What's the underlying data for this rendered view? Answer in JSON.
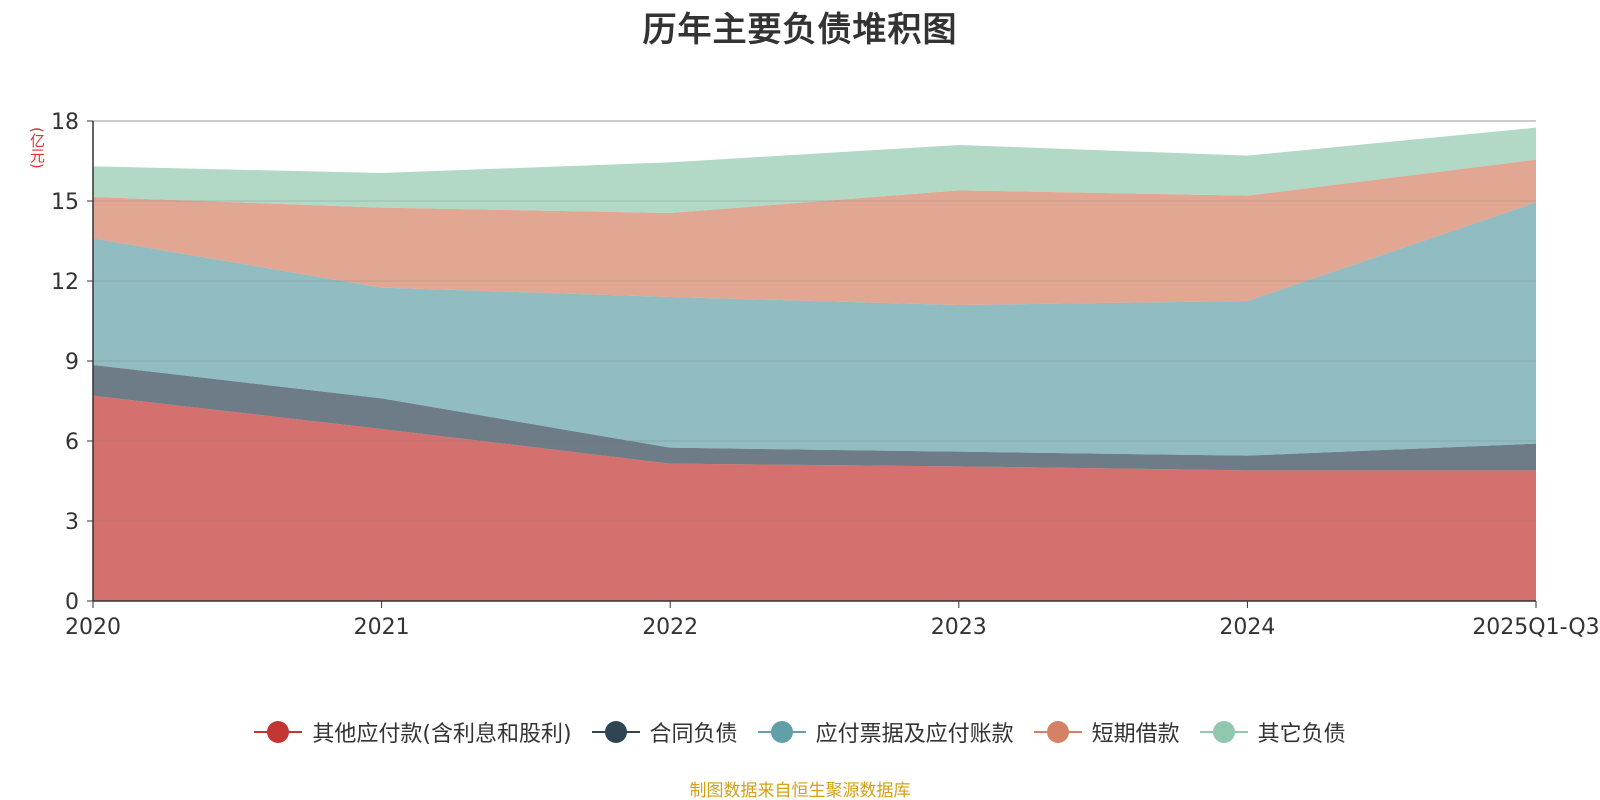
{
  "chart_data": {
    "type": "area",
    "title": "历年主要负债堆积图",
    "unit_label": "(亿元)",
    "source_note": "制图数据来自恒生聚源数据库",
    "categories": [
      "2020",
      "2021",
      "2022",
      "2023",
      "2024",
      "2025Q1-Q3"
    ],
    "ylim": [
      0,
      18
    ],
    "yticks": [
      0,
      3,
      6,
      9,
      12,
      15,
      18
    ],
    "stacked": true,
    "grid": true,
    "legend_position": "bottom",
    "series": [
      {
        "name": "其他应付款(含利息和股利)",
        "color": "#c23531",
        "values": [
          7.7,
          6.45,
          5.15,
          5.05,
          4.9,
          4.9
        ]
      },
      {
        "name": "合同负债",
        "color": "#2f4554",
        "values": [
          1.15,
          1.15,
          0.6,
          0.55,
          0.55,
          1.0
        ]
      },
      {
        "name": "应付票据及应付账款",
        "color": "#61a0a8",
        "values": [
          4.75,
          4.15,
          5.65,
          5.5,
          5.8,
          9.05
        ]
      },
      {
        "name": "短期借款",
        "color": "#d48265",
        "values": [
          1.55,
          3.0,
          3.15,
          4.3,
          3.95,
          1.6
        ]
      },
      {
        "name": "其它负债",
        "color": "#91c7ae",
        "values": [
          1.15,
          1.3,
          1.9,
          1.7,
          1.5,
          1.2
        ]
      }
    ]
  }
}
